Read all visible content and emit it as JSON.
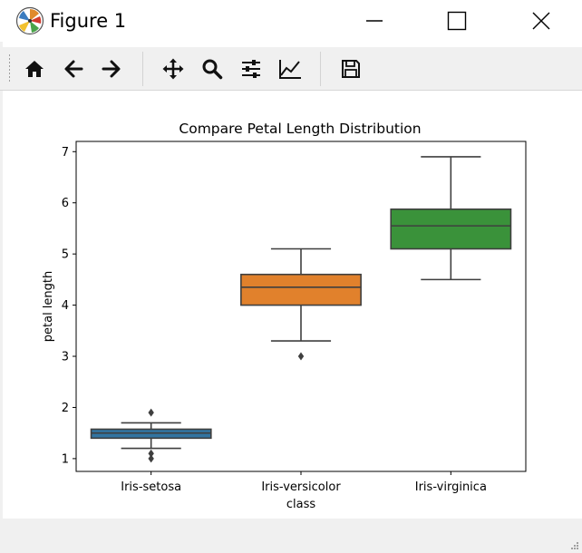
{
  "window": {
    "title": "Figure 1",
    "controls": [
      "minimize",
      "maximize",
      "close"
    ]
  },
  "toolbar": {
    "buttons": [
      {
        "name": "home",
        "icon": "home-icon"
      },
      {
        "name": "back",
        "icon": "arrow-left-icon"
      },
      {
        "name": "forward",
        "icon": "arrow-right-icon"
      },
      {
        "name": "pan",
        "icon": "move-icon"
      },
      {
        "name": "zoom",
        "icon": "magnifier-icon"
      },
      {
        "name": "configure-subplots",
        "icon": "sliders-icon"
      },
      {
        "name": "edit-axis",
        "icon": "line-chart-icon"
      },
      {
        "name": "save",
        "icon": "floppy-disk-icon"
      }
    ]
  },
  "chart_data": {
    "type": "box",
    "title": "Compare Petal Length Distribution",
    "xlabel": "class",
    "ylabel": "petal length",
    "ylim": [
      0.75,
      7.2
    ],
    "yticks": [
      1,
      2,
      3,
      4,
      5,
      6,
      7
    ],
    "grid": false,
    "categories": [
      "Iris-setosa",
      "Iris-versicolor",
      "Iris-virginica"
    ],
    "colors": [
      "#3274a1",
      "#e1812c",
      "#3a923a"
    ],
    "boxes": [
      {
        "category": "Iris-setosa",
        "whisker_low": 1.2,
        "q1": 1.4,
        "median": 1.5,
        "q3": 1.575,
        "whisker_high": 1.7,
        "outliers": [
          1.0,
          1.1,
          1.9
        ]
      },
      {
        "category": "Iris-versicolor",
        "whisker_low": 3.3,
        "q1": 4.0,
        "median": 4.35,
        "q3": 4.6,
        "whisker_high": 5.1,
        "outliers": [
          3.0
        ]
      },
      {
        "category": "Iris-virginica",
        "whisker_low": 4.5,
        "q1": 5.1,
        "median": 5.55,
        "q3": 5.875,
        "whisker_high": 6.9,
        "outliers": []
      }
    ]
  }
}
